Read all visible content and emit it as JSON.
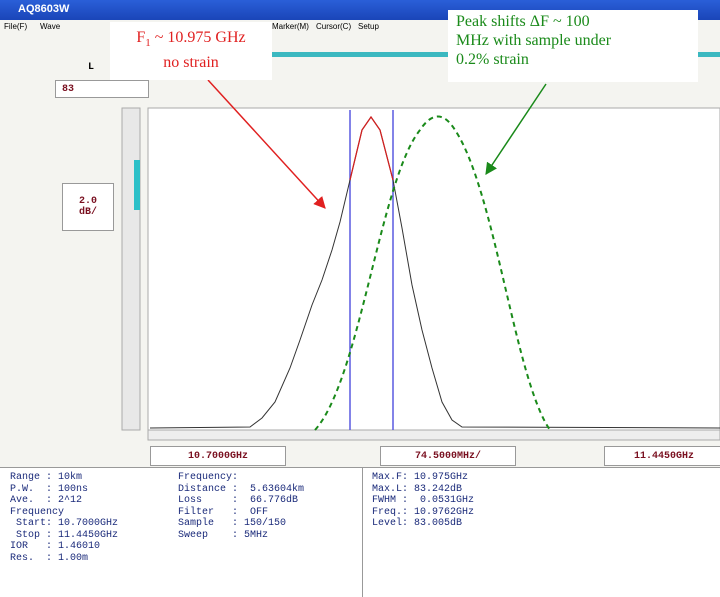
{
  "window": {
    "title": "AQ8603W",
    "menu": [
      "File(F)",
      "Wave",
      "Marker(M)",
      "Cursor(C)",
      "Setup"
    ]
  },
  "toolbar": {
    "label": "L",
    "level_box": "83"
  },
  "scale_box": {
    "value": "2.0",
    "unit": "dB/"
  },
  "axis_boxes": [
    "10.7000GHz",
    "74.5000MHz/",
    "11.4450GHz"
  ],
  "annotations": [
    {
      "prefix": "F",
      "subscript": "1",
      "text": " ~ 10.975 GHz",
      "line2": "no strain"
    },
    {
      "lines": [
        "Peak shifts ΔF ~ 100",
        "MHz with sample under",
        "0.2% strain"
      ]
    }
  ],
  "info": {
    "left": [
      "Range : 10km",
      "P.W.  : 100ns",
      "Ave.  : 2^12",
      "Frequency",
      " Start: 10.7000GHz",
      " Stop : 11.4450GHz",
      "IOR   : 1.46010",
      "Res.  : 1.00m"
    ],
    "middle": [
      "Frequency:",
      "Distance :  5.63604km",
      "Loss     :  66.776dB",
      "Filter   :  OFF",
      "Sample   : 150/150",
      "Sweep    : 5MHz"
    ],
    "right": [
      "Max.F: 10.975GHz",
      "Max.L: 83.242dB",
      "FWHM :  0.0531GHz",
      "Freq.: 10.9762GHz",
      "Level: 83.005dB"
    ]
  }
}
